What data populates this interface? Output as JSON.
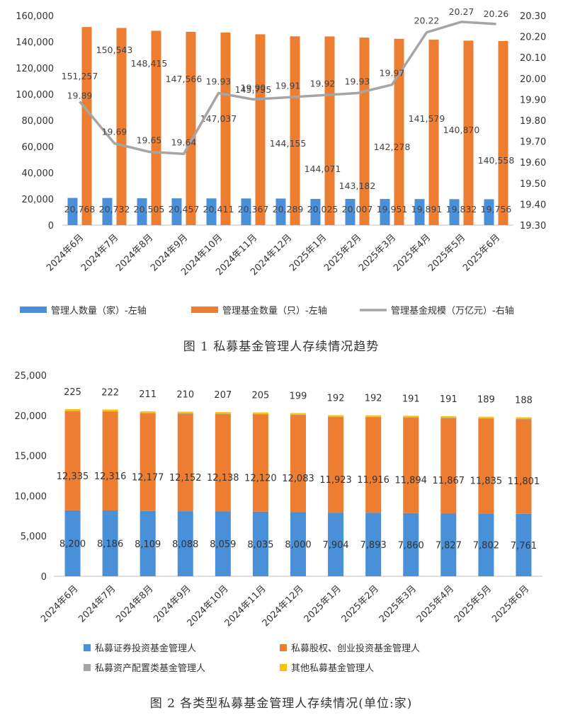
{
  "chart_data": [
    {
      "type": "bar",
      "caption": "图 1  私募基金管理人存续情况趋势",
      "categories": [
        "2024年6月",
        "2024年7月",
        "2024年8月",
        "2024年9月",
        "2024年10月",
        "2024年11月",
        "2024年12月",
        "2025年1月",
        "2025年2月",
        "2025年3月",
        "2025年4月",
        "2025年5月",
        "2025年6月"
      ],
      "y_left": {
        "lim": [
          0,
          160000
        ],
        "ticks": [
          "0",
          "20,000",
          "40,000",
          "60,000",
          "80,000",
          "100,000",
          "120,000",
          "140,000",
          "160,000"
        ]
      },
      "y_right": {
        "lim": [
          19.3,
          20.3
        ],
        "ticks": [
          "19.30",
          "19.40",
          "19.50",
          "19.60",
          "19.70",
          "19.80",
          "19.90",
          "20.00",
          "20.10",
          "20.20",
          "20.30"
        ]
      },
      "series": [
        {
          "name": "管理人数量（家）-左轴",
          "type": "bar",
          "axis": "left",
          "color": "#4a90d9",
          "values": [
            20768,
            20732,
            20505,
            20457,
            20411,
            20367,
            20289,
            20025,
            20007,
            19951,
            19891,
            19832,
            19756
          ],
          "labels": [
            "20,768",
            "20,732",
            "20,505",
            "20,457",
            "20,411",
            "20,367",
            "20,289",
            "20,025",
            "20,007",
            "19,951",
            "19,891",
            "19,832",
            "19,756"
          ]
        },
        {
          "name": "管理基金数量（只）-左轴",
          "type": "bar",
          "axis": "left",
          "color": "#ed7d31",
          "values": [
            151257,
            150543,
            148415,
            147566,
            147037,
            145735,
            144155,
            144071,
            143182,
            142278,
            141579,
            140870,
            140558
          ],
          "labels": [
            "151,257",
            "150,543",
            "148,415",
            "147,566",
            "147,037",
            "145,735",
            "144,155",
            "144,071",
            "143,182",
            "142,278",
            "141,579",
            "140,870",
            "140,558"
          ]
        },
        {
          "name": "管理基金规模（万亿元）-右轴",
          "type": "line",
          "axis": "right",
          "color": "#a5a5a5",
          "values": [
            19.89,
            19.69,
            19.65,
            19.64,
            19.93,
            19.9,
            19.91,
            19.92,
            19.93,
            19.97,
            20.22,
            20.27,
            20.26
          ],
          "labels": [
            "19.89",
            "19.69",
            "19.65",
            "19.64",
            "19.93",
            "19.90",
            "19.91",
            "19.92",
            "19.93",
            "19.97",
            "20.22",
            "20.27",
            "20.26"
          ]
        }
      ]
    },
    {
      "type": "bar",
      "stacked": true,
      "caption": "图 2  各类型私募基金管理人存续情况(单位:家)",
      "categories": [
        "2024年6月",
        "2024年7月",
        "2024年8月",
        "2024年9月",
        "2024年10月",
        "2024年11月",
        "2024年12月",
        "2025年1月",
        "2025年2月",
        "2025年3月",
        "2025年4月",
        "2025年5月",
        "2025年6月"
      ],
      "ylim": [
        0,
        25000
      ],
      "y_ticks": [
        "0",
        "5,000",
        "10,000",
        "15,000",
        "20,000",
        "25,000"
      ],
      "series": [
        {
          "name": "私募证券投资基金管理人",
          "color": "#4a90d9",
          "values": [
            8200,
            8186,
            8109,
            8088,
            8059,
            8035,
            8000,
            7904,
            7893,
            7860,
            7827,
            7802,
            7761
          ],
          "labels": [
            "8,200",
            "8,186",
            "8,109",
            "8,088",
            "8,059",
            "8,035",
            "8,000",
            "7,904",
            "7,893",
            "7,860",
            "7,827",
            "7,802",
            "7,761"
          ]
        },
        {
          "name": "私募股权、创业投资基金管理人",
          "color": "#ed7d31",
          "values": [
            12335,
            12316,
            12177,
            12152,
            12138,
            12120,
            12083,
            11923,
            11916,
            11894,
            11867,
            11835,
            11801
          ],
          "labels": [
            "12,335",
            "12,316",
            "12,177",
            "12,152",
            "12,138",
            "12,120",
            "12,083",
            "11,923",
            "11,916",
            "11,894",
            "11,867",
            "11,835",
            "11,801"
          ]
        },
        {
          "name": "私募资产配置类基金管理人",
          "color": "#a5a5a5",
          "values": [
            8,
            8,
            8,
            8,
            8,
            8,
            8,
            8,
            8,
            8,
            8,
            8,
            8
          ]
        },
        {
          "name": "其他私募基金管理人",
          "color": "#ffc000",
          "values": [
            225,
            222,
            211,
            210,
            207,
            205,
            199,
            192,
            192,
            191,
            191,
            189,
            188
          ],
          "labels": [
            "225",
            "222",
            "211",
            "210",
            "207",
            "205",
            "199",
            "192",
            "192",
            "191",
            "191",
            "189",
            "188"
          ]
        }
      ]
    }
  ]
}
